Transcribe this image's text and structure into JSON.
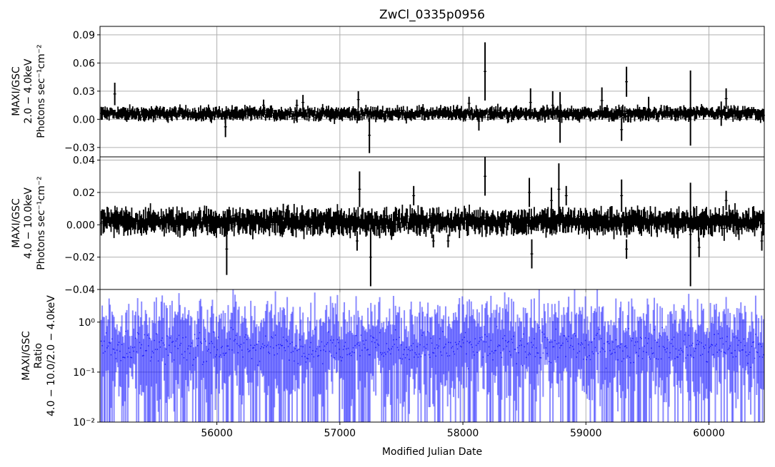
{
  "chart_data": [
    {
      "type": "scatter",
      "title": "ZwCl_0335p0956",
      "ylabel_lines": [
        "MAXI/GSC",
        "2.0 − 4.0keV",
        "Photons sec⁻¹cm⁻²"
      ],
      "xlim": [
        55050,
        60450
      ],
      "ylim": [
        -0.04,
        0.099
      ],
      "yticks": [
        -0.03,
        0.0,
        0.03,
        0.06,
        0.09
      ],
      "ytick_labels": [
        "−0.03",
        "0.00",
        "0.03",
        "0.06",
        "0.09"
      ],
      "xticks": [
        56000,
        57000,
        58000,
        59000,
        60000
      ],
      "grid": true,
      "color": "#000000",
      "series_hint": "binned light curve with error bars",
      "points": [
        {
          "x": 55170,
          "y": 0.027,
          "err": 0.012
        },
        {
          "x": 56070,
          "y": -0.008,
          "err": 0.011
        },
        {
          "x": 56380,
          "y": 0.015,
          "err": 0.006
        },
        {
          "x": 56650,
          "y": 0.015,
          "err": 0.006
        },
        {
          "x": 56700,
          "y": 0.018,
          "err": 0.008
        },
        {
          "x": 57150,
          "y": 0.021,
          "err": 0.009
        },
        {
          "x": 57240,
          "y": -0.017,
          "err": 0.019
        },
        {
          "x": 58050,
          "y": 0.017,
          "err": 0.007
        },
        {
          "x": 58130,
          "y": -0.002,
          "err": 0.01
        },
        {
          "x": 58180,
          "y": 0.051,
          "err": 0.031
        },
        {
          "x": 58550,
          "y": 0.018,
          "err": 0.015
        },
        {
          "x": 58730,
          "y": 0.015,
          "err": 0.015
        },
        {
          "x": 58790,
          "y": 0.002,
          "err": 0.027
        },
        {
          "x": 59130,
          "y": 0.02,
          "err": 0.014
        },
        {
          "x": 59290,
          "y": -0.011,
          "err": 0.012
        },
        {
          "x": 59330,
          "y": 0.04,
          "err": 0.016
        },
        {
          "x": 59510,
          "y": 0.011,
          "err": 0.013
        },
        {
          "x": 59850,
          "y": 0.012,
          "err": 0.04
        },
        {
          "x": 60100,
          "y": 0.006,
          "err": 0.013
        },
        {
          "x": 60140,
          "y": 0.022,
          "err": 0.011
        }
      ]
    },
    {
      "type": "scatter",
      "ylabel_lines": [
        "MAXI/GSC",
        "4.0 − 10.0keV",
        "Photons sec⁻¹cm⁻²"
      ],
      "xlim": [
        55050,
        60450
      ],
      "ylim": [
        -0.04,
        0.042
      ],
      "yticks": [
        -0.04,
        -0.02,
        0.0,
        0.02,
        0.04
      ],
      "ytick_labels": [
        "−0.04",
        "−0.02",
        "0.000",
        "0.02",
        "0.04"
      ],
      "xticks": [
        56000,
        57000,
        58000,
        59000,
        60000
      ],
      "grid": true,
      "color": "#000000",
      "points": [
        {
          "x": 56080,
          "y": -0.015,
          "err": 0.016
        },
        {
          "x": 56540,
          "y": 0.008,
          "err": 0.005
        },
        {
          "x": 57160,
          "y": 0.022,
          "err": 0.011
        },
        {
          "x": 57140,
          "y": -0.01,
          "err": 0.006
        },
        {
          "x": 57250,
          "y": -0.02,
          "err": 0.018
        },
        {
          "x": 57600,
          "y": 0.018,
          "err": 0.006
        },
        {
          "x": 57760,
          "y": -0.01,
          "err": 0.004
        },
        {
          "x": 57880,
          "y": -0.01,
          "err": 0.004
        },
        {
          "x": 58180,
          "y": 0.03,
          "err": 0.012
        },
        {
          "x": 58540,
          "y": 0.02,
          "err": 0.009
        },
        {
          "x": 58560,
          "y": -0.018,
          "err": 0.009
        },
        {
          "x": 58720,
          "y": 0.015,
          "err": 0.008
        },
        {
          "x": 58780,
          "y": 0.022,
          "err": 0.016
        },
        {
          "x": 58840,
          "y": 0.018,
          "err": 0.006
        },
        {
          "x": 59290,
          "y": 0.018,
          "err": 0.01
        },
        {
          "x": 59330,
          "y": -0.015,
          "err": 0.006
        },
        {
          "x": 59850,
          "y": -0.006,
          "err": 0.032
        },
        {
          "x": 59920,
          "y": -0.014,
          "err": 0.006
        },
        {
          "x": 60140,
          "y": 0.015,
          "err": 0.006
        },
        {
          "x": 60430,
          "y": -0.01,
          "err": 0.006
        }
      ]
    },
    {
      "type": "scatter",
      "ylabel_lines": [
        "MAXI/GSC",
        "Ratio",
        "4.0 − 10.0/2.0 − 4.0keV"
      ],
      "xlabel": "Modified Julian Date",
      "xlim": [
        55050,
        60450
      ],
      "yscale": "log",
      "ylim": [
        0.01,
        4.5
      ],
      "yticks": [
        0.01,
        0.1,
        1
      ],
      "ytick_labels": [
        "10⁻²",
        "10⁻¹",
        "10⁰"
      ],
      "xticks": [
        56000,
        57000,
        58000,
        59000,
        60000
      ],
      "xtick_labels": [
        "56000",
        "57000",
        "58000",
        "59000",
        "60000"
      ],
      "grid": true,
      "color": "#0000ff",
      "series_hint": "ratio with large error bars"
    }
  ]
}
